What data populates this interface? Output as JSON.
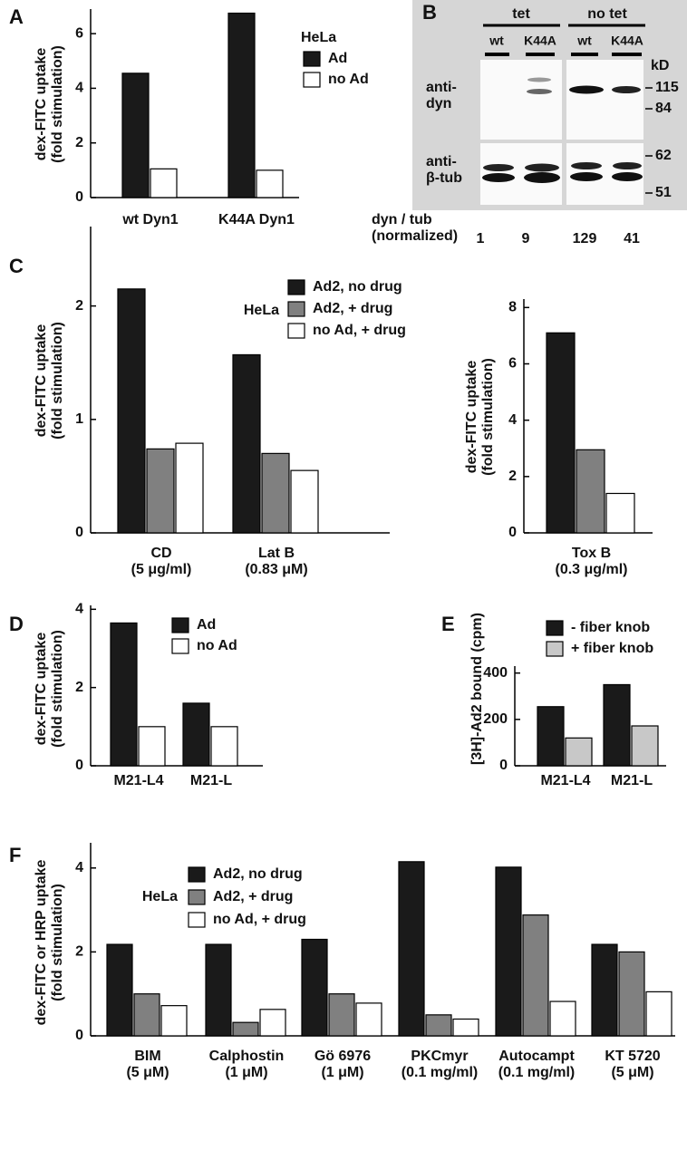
{
  "chart_data": [
    {
      "type": "bar",
      "panel": "A",
      "ylabel": "dex-FITC uptake\n(fold stimulation)",
      "categories": [
        "wt Dyn1",
        "K44A Dyn1"
      ],
      "legend_title": "HeLa",
      "series": [
        {
          "name": "Ad",
          "color": "#1a1a1a",
          "values": [
            4.55,
            6.75
          ]
        },
        {
          "name": "no Ad",
          "color": "#ffffff",
          "values": [
            1.05,
            1.0
          ]
        }
      ],
      "ylim": [
        0,
        6.9
      ],
      "yticks": [
        0,
        2,
        4,
        6
      ]
    },
    {
      "type": "blot",
      "panel": "B",
      "groups": [
        "tet",
        "no tet"
      ],
      "lanes": [
        "wt",
        "K44A",
        "wt",
        "K44A"
      ],
      "rows": [
        "anti-\ndyn",
        "anti-\nβ-tub"
      ],
      "unit": "kD",
      "markers": [
        115,
        84,
        62,
        51
      ],
      "ratio_label": "dyn / tub\n(normalized)",
      "values": [
        1,
        9,
        129,
        41
      ]
    },
    {
      "type": "bar",
      "panel": "C",
      "ylabel": "dex-FITC uptake\n(fold stimulation)",
      "categories": [
        "CD\n(5 μg/ml)",
        "Lat B\n(0.83 μM)"
      ],
      "legend_title": "HeLa",
      "series": [
        {
          "name": "Ad2, no drug",
          "color": "#1a1a1a",
          "values": [
            2.15,
            1.57
          ]
        },
        {
          "name": "Ad2, + drug",
          "color": "#808080",
          "values": [
            0.74,
            0.7
          ]
        },
        {
          "name": "no Ad, + drug",
          "color": "#ffffff",
          "values": [
            0.79,
            0.55
          ]
        }
      ],
      "ylim": [
        0,
        2.7
      ],
      "yticks": [
        0,
        1,
        2
      ]
    },
    {
      "type": "bar",
      "ylabel": "dex-FITC uptake\n(fold stimulation)",
      "categories": [
        "Tox B\n(0.3 μg/ml)"
      ],
      "series": [
        {
          "color": "#1a1a1a",
          "values": [
            7.1
          ]
        },
        {
          "color": "#808080",
          "values": [
            2.95
          ]
        },
        {
          "color": "#ffffff",
          "values": [
            1.4
          ]
        }
      ],
      "ylim": [
        0,
        8.3
      ],
      "yticks": [
        0,
        2,
        4,
        6,
        8
      ]
    },
    {
      "type": "bar",
      "panel": "D",
      "ylabel": "dex-FITC uptake\n(fold stimulation)",
      "categories": [
        "M21-L4",
        "M21-L"
      ],
      "series": [
        {
          "name": "Ad",
          "color": "#1a1a1a",
          "values": [
            3.65,
            1.6
          ]
        },
        {
          "name": "no Ad",
          "color": "#ffffff",
          "values": [
            1.0,
            1.0
          ]
        }
      ],
      "ylim": [
        0,
        4.1
      ],
      "yticks": [
        0,
        2,
        4
      ]
    },
    {
      "type": "bar",
      "panel": "E",
      "ylabel": "[3H]-Ad2 bound (cpm)",
      "categories": [
        "M21-L4",
        "M21-L"
      ],
      "series": [
        {
          "name": "- fiber knob",
          "color": "#1a1a1a",
          "values": [
            255,
            350
          ]
        },
        {
          "name": "+ fiber knob",
          "color": "#c8c8c8",
          "values": [
            120,
            172
          ]
        }
      ],
      "ylim": [
        0,
        430
      ],
      "yticks": [
        0,
        200,
        400
      ]
    },
    {
      "type": "bar",
      "panel": "F",
      "ylabel": "dex-FITC or HRP uptake\n(fold stimulation)",
      "legend_title": "HeLa",
      "categories": [
        "BIM\n(5 μM)",
        "Calphostin\n(1 μM)",
        "Gö 6976\n(1 μM)",
        "PKCmyr\n(0.1 mg/ml)",
        "Autocampt\n(0.1 mg/ml)",
        "KT 5720\n(5 μM)"
      ],
      "series": [
        {
          "name": "Ad2, no drug",
          "color": "#1a1a1a",
          "values": [
            2.18,
            2.18,
            2.3,
            4.15,
            4.02,
            2.18
          ]
        },
        {
          "name": "Ad2, + drug",
          "color": "#808080",
          "values": [
            1.0,
            0.32,
            1.0,
            0.5,
            2.88,
            2.0
          ]
        },
        {
          "name": "no Ad, + drug",
          "color": "#ffffff",
          "values": [
            0.72,
            0.63,
            0.78,
            0.4,
            0.82,
            1.05
          ]
        }
      ],
      "ylim": [
        0,
        4.6
      ],
      "yticks": [
        0,
        2,
        4
      ]
    }
  ]
}
